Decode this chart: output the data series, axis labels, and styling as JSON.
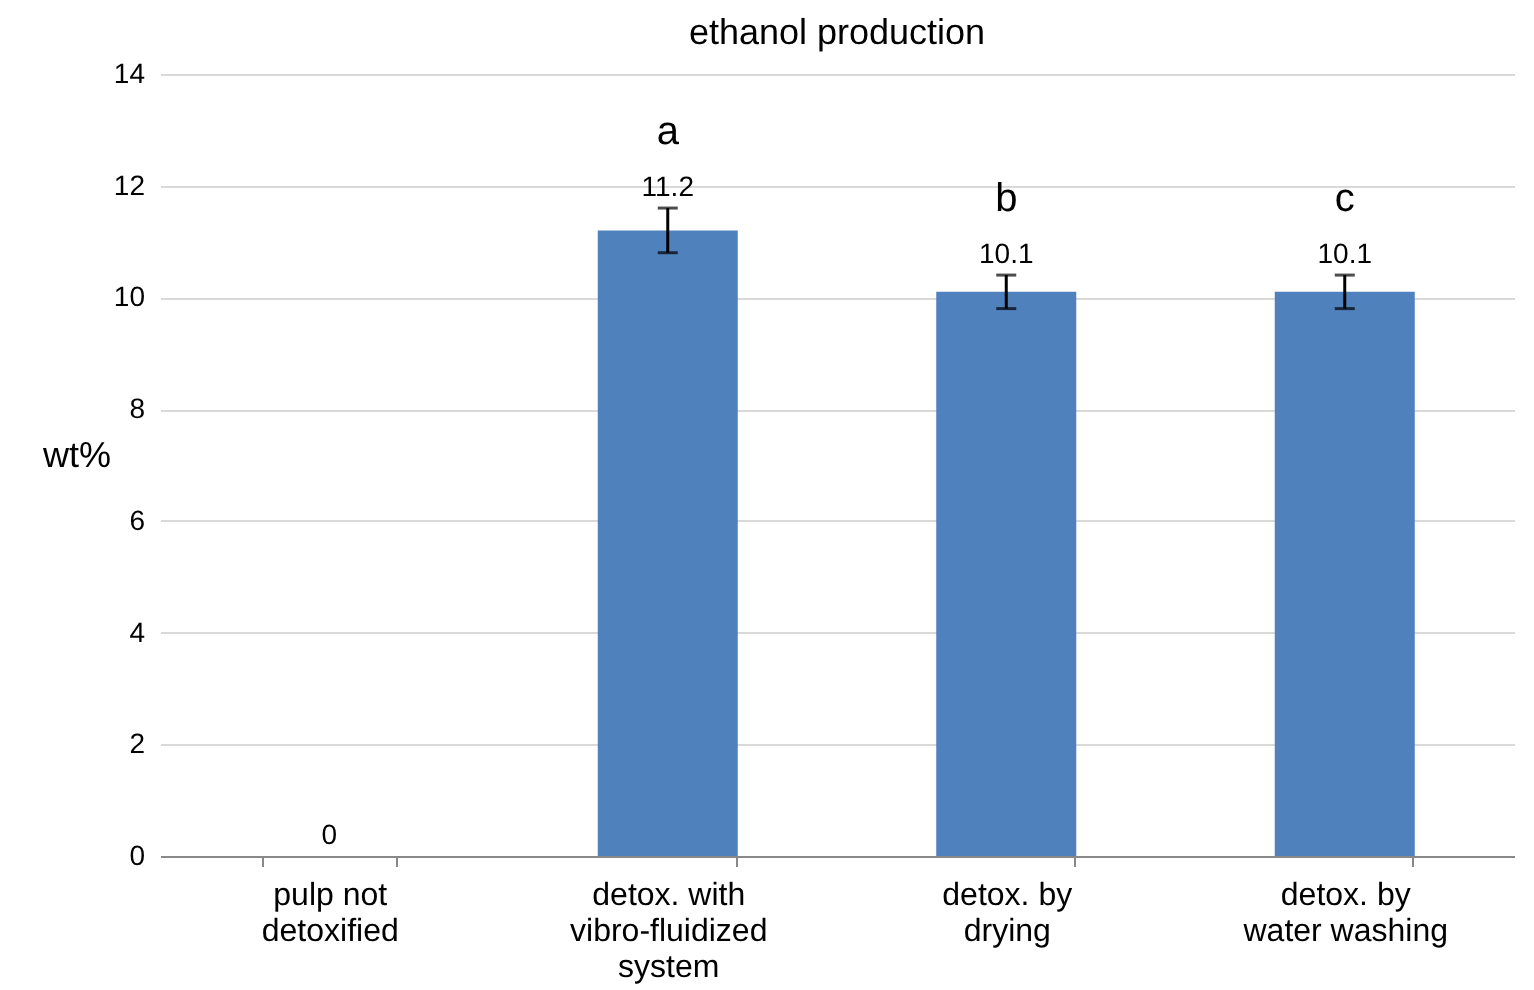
{
  "chart_data": {
    "type": "bar",
    "title": "ethanol production",
    "ylabel": "wt%",
    "categories": [
      "pulp not detoxified",
      "detox. with vibro-fluidized system",
      "detox. by drying",
      "detox. by water washing"
    ],
    "values": [
      0,
      11.2,
      10.1,
      10.1
    ],
    "color": "#4f81bd",
    "errors": [
      null,
      0.4,
      0.3,
      0.3
    ],
    "data_labels": true,
    "annotations": [
      "a",
      "b",
      "c"
    ],
    "ylim": [
      0,
      14
    ],
    "yticks": [
      0,
      2,
      4,
      6,
      8,
      10,
      12,
      14
    ],
    "grid": "y"
  }
}
